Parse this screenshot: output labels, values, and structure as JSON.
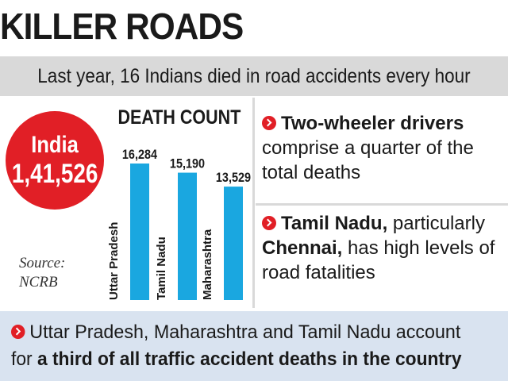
{
  "header": {
    "title": "KILLER ROADS",
    "subtitle": "Last year, 16 Indians died in road accidents every hour"
  },
  "total": {
    "label": "India",
    "value": "1,41,526"
  },
  "source": {
    "label": "Source:",
    "name": "NCRB"
  },
  "chart_data": {
    "type": "bar",
    "title": "DEATH COUNT",
    "categories": [
      "Uttar Pradesh",
      "Tamil Nadu",
      "Maharashtra"
    ],
    "values": [
      16284,
      15190,
      13529
    ],
    "value_labels": [
      "16,284",
      "15,190",
      "13,529"
    ],
    "xlabel": "",
    "ylabel": "",
    "ylim": [
      0,
      16284
    ],
    "grid": false,
    "bar_color": "#1aa7e0"
  },
  "notes": [
    {
      "bold": "Two-wheeler drivers",
      "text_line1": "comprise a quarter of the",
      "text_line2": "total deaths"
    },
    {
      "bold1": "Tamil Nadu,",
      "text1": " particularly",
      "bold2": "Chennai,",
      "text2": " has high levels of",
      "text3": "road fatalities"
    }
  ],
  "footer": {
    "line1": "Uttar Pradesh, Maharashtra and Tamil Nadu account",
    "line2_prefix": "for ",
    "line2_bold": "a third of all traffic accident deaths in the country"
  },
  "colors": {
    "accent": "#e11f26",
    "bar": "#1aa7e0",
    "band": "#d9d9d9",
    "footer_band": "#d9e3f0"
  }
}
